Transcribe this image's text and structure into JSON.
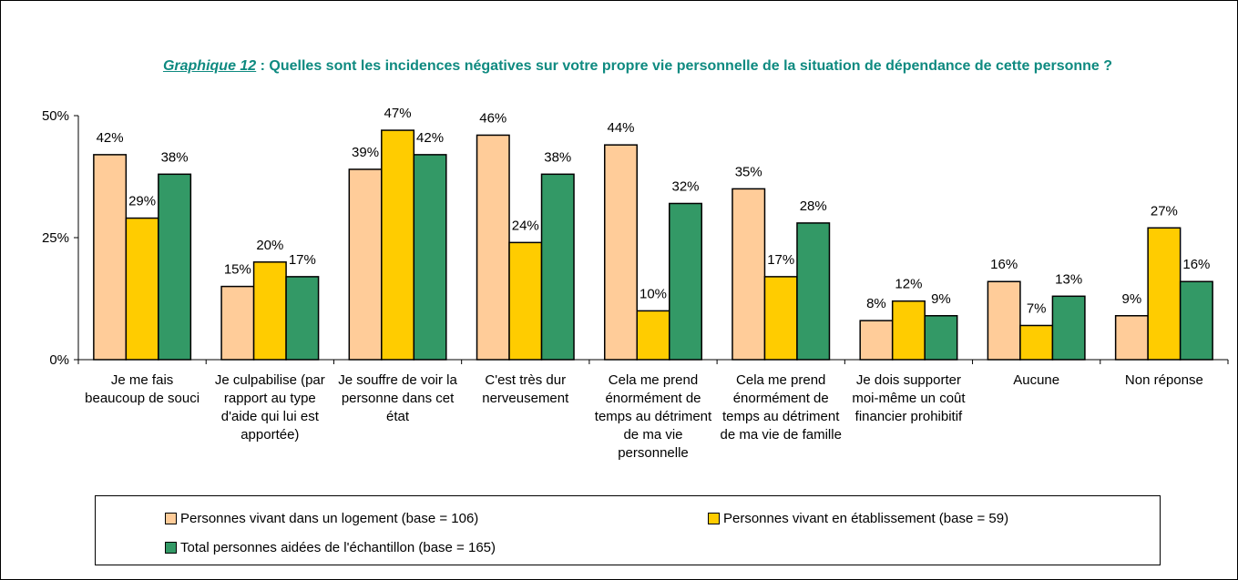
{
  "chart_data": {
    "type": "bar",
    "title_ref": "Graphique 12",
    "title": " : Quelles sont les incidences négatives sur votre propre vie personnelle de la situation de dépendance de cette personne ?",
    "categories": [
      "Je me fais beaucoup de souci",
      "Je culpabilise (par rapport au type d'aide qui lui est apportée)",
      "Je souffre de voir la personne dans cet état",
      "C'est très dur nerveusement",
      "Cela me prend énormément de temps au détriment de ma vie personnelle",
      "Cela me prend énormément de temps au détriment de ma vie de famille",
      "Je dois supporter moi-même un coût financier prohibitif",
      "Aucune",
      "Non réponse"
    ],
    "series": [
      {
        "name": "Personnes vivant dans un logement (base = 106)",
        "color": "#FFCC99",
        "values": [
          42,
          15,
          39,
          46,
          44,
          35,
          8,
          16,
          9
        ],
        "value_labels": [
          "42%",
          "15%",
          "39%",
          "46%",
          "44%",
          "35%",
          "8%",
          "16%",
          "9%"
        ]
      },
      {
        "name": "Personnes vivant en établissement (base = 59)",
        "color": "#FFCC00",
        "values": [
          29,
          20,
          47,
          24,
          10,
          17,
          12,
          7,
          27
        ],
        "value_labels": [
          "29%",
          "20%",
          "47%",
          "24%",
          "10%",
          "17%",
          "12%",
          "7%",
          "27%"
        ]
      },
      {
        "name": "Total personnes aidées de l'échantillon (base = 165)",
        "color": "#339966",
        "values": [
          38,
          17,
          42,
          38,
          32,
          28,
          9,
          13,
          16
        ],
        "value_labels": [
          "38%",
          "17%",
          "42%",
          "38%",
          "32%",
          "28%",
          "9%",
          "13%",
          "16%"
        ]
      }
    ],
    "ylim": [
      0,
      50
    ],
    "yticks": [
      {
        "value": 0,
        "label": "0%"
      },
      {
        "value": 25,
        "label": "25%"
      },
      {
        "value": 50,
        "label": "50%"
      }
    ],
    "grid": false
  }
}
